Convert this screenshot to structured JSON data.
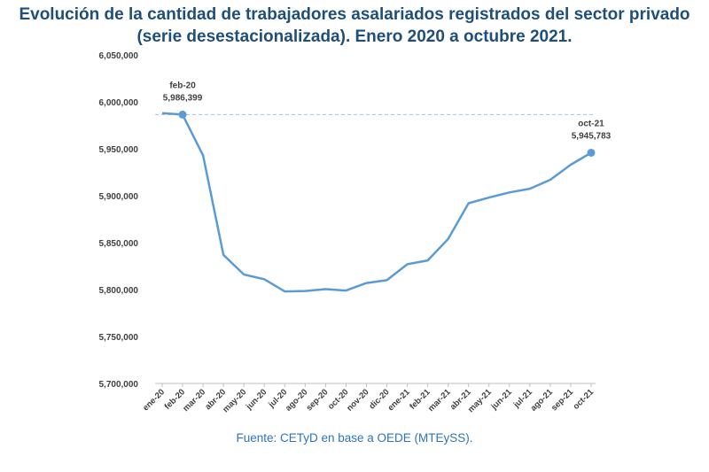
{
  "title_line1": "Evolución de la cantidad de trabajadores asalariados registrados del sector privado",
  "title_line2": "(serie desestacionalizada). Enero 2020 a octubre 2021.",
  "source": "Fuente: CETyD en base a OEDE (MTEySS).",
  "colors": {
    "line": "#5b9bd5",
    "title": "#1f4e79",
    "source": "#2e75b6",
    "ref_line": "#9dc3e6"
  },
  "chart_data": {
    "type": "line",
    "title": "Evolución de la cantidad de trabajadores asalariados registrados del sector privado (serie desestacionalizada). Enero 2020 a octubre 2021.",
    "xlabel": "",
    "ylabel": "",
    "ylim": [
      5700000,
      6050000
    ],
    "yticks": [
      5700000,
      5750000,
      5800000,
      5850000,
      5900000,
      5950000,
      6000000,
      6050000
    ],
    "ytick_labels": [
      "5,700,000",
      "5,750,000",
      "5,800,000",
      "5,850,000",
      "5,900,000",
      "5,950,000",
      "6,000,000",
      "6,050,000"
    ],
    "categories": [
      "ene-20",
      "feb-20",
      "mar-20",
      "abr-20",
      "may-20",
      "jun-20",
      "jul-20",
      "ago-20",
      "sep-20",
      "oct-20",
      "nov-20",
      "dic-20",
      "ene-21",
      "feb-21",
      "mar-21",
      "abr-21",
      "may-21",
      "jun-21",
      "jul-21",
      "ago-21",
      "sep-21",
      "oct-21"
    ],
    "series": [
      {
        "name": "Trabajadores asalariados registrados",
        "values": [
          5988000,
          5986399,
          5943000,
          5837000,
          5816000,
          5811000,
          5798000,
          5798500,
          5800500,
          5799000,
          5807000,
          5810000,
          5827000,
          5831000,
          5854000,
          5892000,
          5898000,
          5903500,
          5907500,
          5917000,
          5933000,
          5945783
        ]
      }
    ],
    "reference_line": {
      "value": 5986399,
      "style": "dashed"
    },
    "annotations": [
      {
        "index": 1,
        "label": "feb-20",
        "value_label": "5,986,399"
      },
      {
        "index": 21,
        "label": "oct-21",
        "value_label": "5,945,783"
      }
    ],
    "grid": false,
    "legend": "none"
  }
}
